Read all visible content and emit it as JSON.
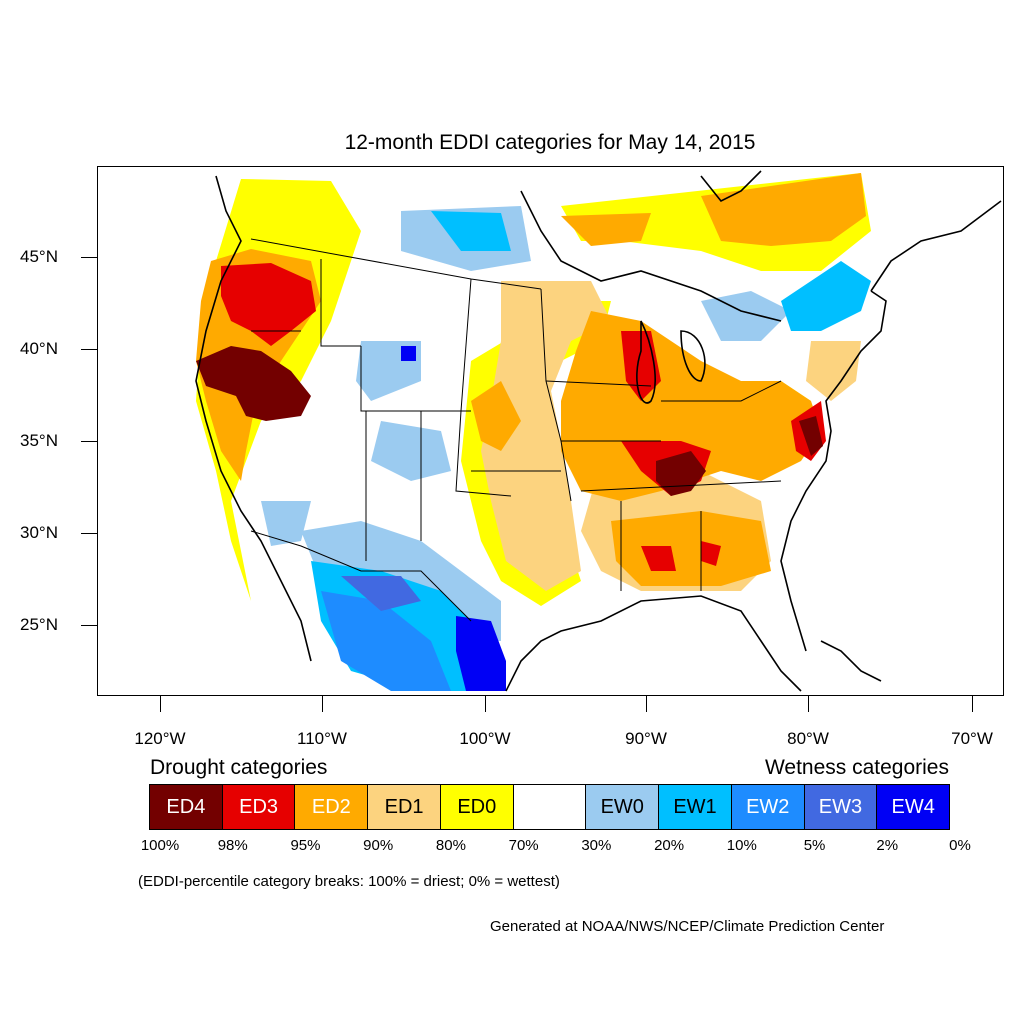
{
  "title": "12-month EDDI categories for May 14, 2015",
  "map": {
    "lat_labels": [
      "45°N",
      "40°N",
      "35°N",
      "30°N",
      "25°N"
    ],
    "lon_labels": [
      "120°W",
      "110°W",
      "100°W",
      "90°W",
      "80°W",
      "70°W"
    ]
  },
  "legend": {
    "drought_heading": "Drought categories",
    "wetness_heading": "Wetness categories",
    "categories": [
      {
        "label": "ED4",
        "color": "#730000",
        "text_color": "#ffffff"
      },
      {
        "label": "ED3",
        "color": "#e60000",
        "text_color": "#ffffff"
      },
      {
        "label": "ED2",
        "color": "#ffaa00",
        "text_color": "#ffffff"
      },
      {
        "label": "ED1",
        "color": "#fcd37f",
        "text_color": "#000000"
      },
      {
        "label": "ED0",
        "color": "#ffff00",
        "text_color": "#000000"
      },
      {
        "label": "",
        "color": "#ffffff",
        "text_color": "#000000"
      },
      {
        "label": "EW0",
        "color": "#9bcbf0",
        "text_color": "#000000"
      },
      {
        "label": "EW1",
        "color": "#00bfff",
        "text_color": "#000000"
      },
      {
        "label": "EW2",
        "color": "#1e8cff",
        "text_color": "#ffffff"
      },
      {
        "label": "EW3",
        "color": "#4169e1",
        "text_color": "#ffffff"
      },
      {
        "label": "EW4",
        "color": "#0000f5",
        "text_color": "#ffffff"
      }
    ],
    "percentiles": [
      "100%",
      "98%",
      "95%",
      "90%",
      "80%",
      "70%",
      "30%",
      "20%",
      "10%",
      "5%",
      "2%",
      "0%"
    ]
  },
  "note": "(EDDI-percentile category breaks: 100% = driest; 0% = wettest)",
  "credit": "Generated at NOAA/NWS/NCEP/Climate Prediction Center"
}
